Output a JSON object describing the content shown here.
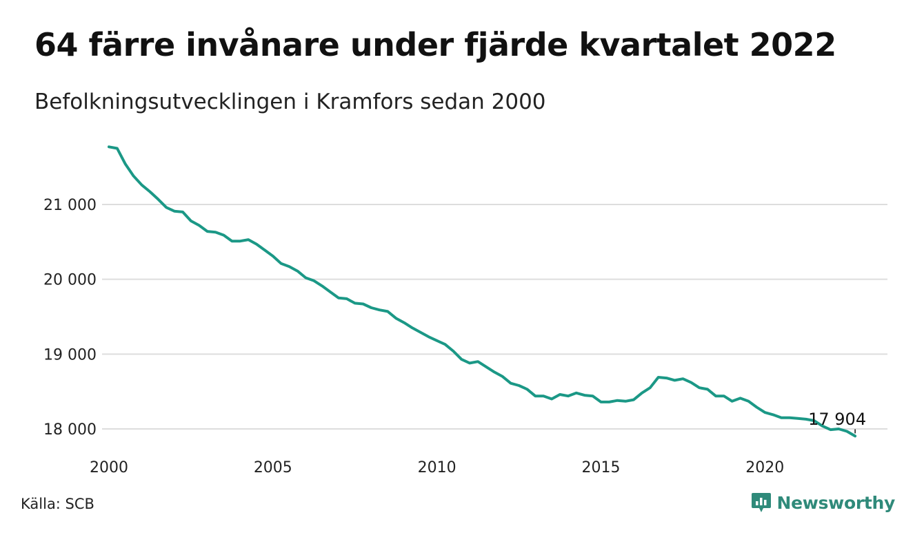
{
  "title": "64 färre invånare under fjärde kvartalet 2022",
  "subtitle": "Befolkningsutvecklingen i Kramfors sedan 2000",
  "source": "Källa: SCB",
  "brand": "Newsworthy",
  "colors": {
    "line": "#1b9886",
    "grid": "#dddddd",
    "brand": "#2f8a7a"
  },
  "chart_data": {
    "type": "line",
    "xlim": [
      2000,
      2023
    ],
    "ylim": [
      17800,
      21900
    ],
    "x_ticks": [
      2000,
      2005,
      2010,
      2015,
      2020
    ],
    "y_ticks": [
      18000,
      19000,
      20000,
      21000
    ],
    "y_tick_labels": [
      "18 000",
      "19 000",
      "20 000",
      "21 000"
    ],
    "x_tick_labels": [
      "2000",
      "2005",
      "2010",
      "2015",
      "2020"
    ],
    "end_label": "17 904",
    "grid": true,
    "series": [
      {
        "values": [
          [
            2000.0,
            21770
          ],
          [
            2000.25,
            21750
          ],
          [
            2000.5,
            21540
          ],
          [
            2000.75,
            21380
          ],
          [
            2001.0,
            21260
          ],
          [
            2001.25,
            21170
          ],
          [
            2001.5,
            21070
          ],
          [
            2001.75,
            20960
          ],
          [
            2002.0,
            20910
          ],
          [
            2002.25,
            20900
          ],
          [
            2002.5,
            20780
          ],
          [
            2002.75,
            20720
          ],
          [
            2003.0,
            20640
          ],
          [
            2003.25,
            20630
          ],
          [
            2003.5,
            20590
          ],
          [
            2003.75,
            20510
          ],
          [
            2004.0,
            20510
          ],
          [
            2004.25,
            20530
          ],
          [
            2004.5,
            20470
          ],
          [
            2004.75,
            20390
          ],
          [
            2005.0,
            20310
          ],
          [
            2005.25,
            20210
          ],
          [
            2005.5,
            20170
          ],
          [
            2005.75,
            20110
          ],
          [
            2006.0,
            20020
          ],
          [
            2006.25,
            19980
          ],
          [
            2006.5,
            19910
          ],
          [
            2006.75,
            19830
          ],
          [
            2007.0,
            19750
          ],
          [
            2007.25,
            19740
          ],
          [
            2007.5,
            19680
          ],
          [
            2007.75,
            19670
          ],
          [
            2008.0,
            19620
          ],
          [
            2008.25,
            19590
          ],
          [
            2008.5,
            19570
          ],
          [
            2008.75,
            19480
          ],
          [
            2009.0,
            19420
          ],
          [
            2009.25,
            19350
          ],
          [
            2009.5,
            19290
          ],
          [
            2009.75,
            19230
          ],
          [
            2010.0,
            19180
          ],
          [
            2010.25,
            19130
          ],
          [
            2010.5,
            19040
          ],
          [
            2010.75,
            18930
          ],
          [
            2011.0,
            18880
          ],
          [
            2011.25,
            18900
          ],
          [
            2011.5,
            18830
          ],
          [
            2011.75,
            18760
          ],
          [
            2012.0,
            18700
          ],
          [
            2012.25,
            18610
          ],
          [
            2012.5,
            18580
          ],
          [
            2012.75,
            18530
          ],
          [
            2013.0,
            18440
          ],
          [
            2013.25,
            18440
          ],
          [
            2013.5,
            18400
          ],
          [
            2013.75,
            18460
          ],
          [
            2014.0,
            18440
          ],
          [
            2014.25,
            18480
          ],
          [
            2014.5,
            18450
          ],
          [
            2014.75,
            18440
          ],
          [
            2015.0,
            18360
          ],
          [
            2015.25,
            18360
          ],
          [
            2015.5,
            18380
          ],
          [
            2015.75,
            18370
          ],
          [
            2016.0,
            18390
          ],
          [
            2016.25,
            18480
          ],
          [
            2016.5,
            18550
          ],
          [
            2016.75,
            18690
          ],
          [
            2017.0,
            18680
          ],
          [
            2017.25,
            18650
          ],
          [
            2017.5,
            18670
          ],
          [
            2017.75,
            18620
          ],
          [
            2018.0,
            18550
          ],
          [
            2018.25,
            18530
          ],
          [
            2018.5,
            18440
          ],
          [
            2018.75,
            18440
          ],
          [
            2019.0,
            18370
          ],
          [
            2019.25,
            18410
          ],
          [
            2019.5,
            18370
          ],
          [
            2019.75,
            18290
          ],
          [
            2020.0,
            18220
          ],
          [
            2020.25,
            18190
          ],
          [
            2020.5,
            18150
          ],
          [
            2020.75,
            18150
          ],
          [
            2021.0,
            18140
          ],
          [
            2021.25,
            18130
          ],
          [
            2021.5,
            18110
          ],
          [
            2021.75,
            18040
          ],
          [
            2022.0,
            17990
          ],
          [
            2022.25,
            18000
          ],
          [
            2022.5,
            17968
          ],
          [
            2022.75,
            17904
          ]
        ]
      }
    ]
  }
}
